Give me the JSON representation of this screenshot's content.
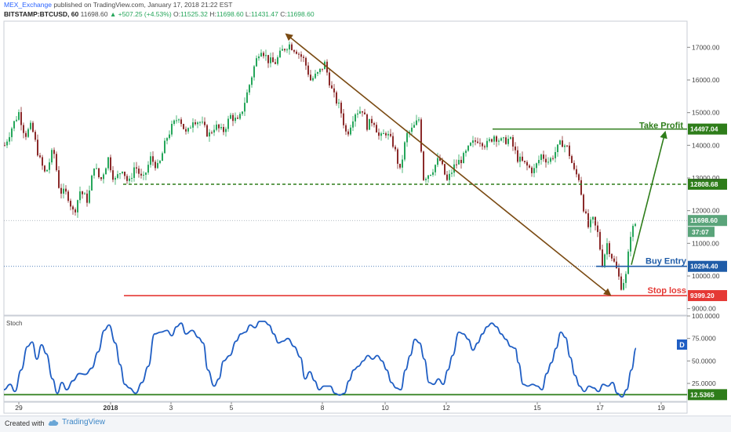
{
  "header": {
    "author": "MEX_Exchange",
    "published": "published on TradingView.com, January 17, 2018 21:22 EST",
    "symbol": "BITSTAMP:BTCUSD, 60",
    "last": "11698.60",
    "change": "▲ +507.25 (+4.53%)",
    "o_label": "O:",
    "o_val": "11525.32",
    "h_label": "H:",
    "h_val": "11698.60",
    "l_label": "L:",
    "l_val": "11431.47",
    "c_label": "C:",
    "c_val": "11698.60"
  },
  "footer": {
    "created": "Created with",
    "brand": "TradingView"
  },
  "stoch_label": "Stoch",
  "colors": {
    "up": "#26a65b",
    "down": "#8b2a2a",
    "arrow": "#7a4a12",
    "take_profit": "#2e7d1a",
    "stop": "#e53935",
    "entry": "#1f5ca8",
    "stoch": "#1f5ec4",
    "current": "#5aa47a"
  },
  "chart_data": [
    {
      "type": "candlestick",
      "x_ticks": [
        "29",
        "2018",
        "3",
        "5",
        "8",
        "10",
        "12",
        "15",
        "17",
        "19"
      ],
      "y_ticks": [
        "9000.00",
        "10000.00",
        "11000.00",
        "12000.00",
        "13000.00",
        "14000.00",
        "15000.00",
        "16000.00",
        "17000.00"
      ],
      "ylim": [
        8800,
        17800
      ],
      "price_path": [
        [
          0,
          14000
        ],
        [
          10,
          14600
        ],
        [
          18,
          15000
        ],
        [
          26,
          14300
        ],
        [
          34,
          14600
        ],
        [
          44,
          13600
        ],
        [
          52,
          13100
        ],
        [
          62,
          13900
        ],
        [
          70,
          12600
        ],
        [
          80,
          12500
        ],
        [
          88,
          11900
        ],
        [
          96,
          12600
        ],
        [
          106,
          12300
        ],
        [
          114,
          13400
        ],
        [
          122,
          12900
        ],
        [
          132,
          13600
        ],
        [
          140,
          12900
        ],
        [
          150,
          13300
        ],
        [
          158,
          12800
        ],
        [
          166,
          13400
        ],
        [
          176,
          12900
        ],
        [
          186,
          13600
        ],
        [
          196,
          13300
        ],
        [
          206,
          14200
        ],
        [
          214,
          14600
        ],
        [
          222,
          14900
        ],
        [
          232,
          14300
        ],
        [
          240,
          14800
        ],
        [
          250,
          14700
        ],
        [
          260,
          14300
        ],
        [
          268,
          14600
        ],
        [
          278,
          14400
        ],
        [
          288,
          14900
        ],
        [
          298,
          14700
        ],
        [
          308,
          15500
        ],
        [
          318,
          16400
        ],
        [
          326,
          17000
        ],
        [
          336,
          16600
        ],
        [
          344,
          16500
        ],
        [
          354,
          16900
        ],
        [
          362,
          17100
        ],
        [
          372,
          16900
        ],
        [
          382,
          16600
        ],
        [
          390,
          16000
        ],
        [
          400,
          16200
        ],
        [
          408,
          16500
        ],
        [
          418,
          15600
        ],
        [
          428,
          15100
        ],
        [
          436,
          14300
        ],
        [
          446,
          15000
        ],
        [
          456,
          15100
        ],
        [
          462,
          14600
        ],
        [
          470,
          14800
        ],
        [
          478,
          14200
        ],
        [
          486,
          14400
        ],
        [
          496,
          14000
        ],
        [
          504,
          13200
        ],
        [
          512,
          14300
        ],
        [
          520,
          14500
        ],
        [
          528,
          14800
        ],
        [
          534,
          13000
        ],
        [
          544,
          13200
        ],
        [
          554,
          13600
        ],
        [
          564,
          12900
        ],
        [
          574,
          13400
        ],
        [
          584,
          13600
        ],
        [
          594,
          14000
        ],
        [
          604,
          14200
        ],
        [
          614,
          14000
        ],
        [
          624,
          14300
        ],
        [
          634,
          14100
        ],
        [
          644,
          14200
        ],
        [
          654,
          13600
        ],
        [
          664,
          13400
        ],
        [
          674,
          13200
        ],
        [
          684,
          13700
        ],
        [
          694,
          13500
        ],
        [
          702,
          13800
        ],
        [
          710,
          14100
        ],
        [
          718,
          13900
        ],
        [
          726,
          13200
        ],
        [
          732,
          13000
        ],
        [
          738,
          12100
        ],
        [
          744,
          11500
        ],
        [
          750,
          11700
        ],
        [
          756,
          11300
        ],
        [
          762,
          10400
        ],
        [
          768,
          11000
        ],
        [
          774,
          10600
        ],
        [
          780,
          10200
        ],
        [
          786,
          9700
        ],
        [
          792,
          10000
        ],
        [
          798,
          11300
        ],
        [
          806,
          11700
        ]
      ],
      "levels": [
        {
          "label": "14497.04",
          "value": 14497.04,
          "name": "Take Profit"
        },
        {
          "label": "12808.68",
          "value": 12808.68
        },
        {
          "label": "11698.60",
          "value": 11698.6
        },
        {
          "label": "37:07"
        },
        {
          "label": "10294.40",
          "value": 10294.4,
          "name": "Buy Entry"
        },
        {
          "label": "9399.20",
          "value": 9399.2,
          "name": "Stop loss"
        }
      ],
      "annotations": [
        "Take Profit",
        "Buy Entry",
        "Stop loss"
      ]
    },
    {
      "type": "line",
      "name": "Stoch",
      "y_ticks": [
        "100.0000",
        "75.0000",
        "50.0000",
        "25.0000"
      ],
      "ylim": [
        5,
        100
      ],
      "level_label": "12.5365",
      "level_value": 12.5365,
      "d_label": "D",
      "series": [
        {
          "values": [
            [
              0,
              18
            ],
            [
              8,
              24
            ],
            [
              14,
              16
            ],
            [
              22,
              40
            ],
            [
              30,
              66
            ],
            [
              36,
              71
            ],
            [
              42,
              52
            ],
            [
              48,
              68
            ],
            [
              54,
              58
            ],
            [
              62,
              30
            ],
            [
              68,
              14
            ],
            [
              74,
              26
            ],
            [
              80,
              18
            ],
            [
              88,
              28
            ],
            [
              96,
              36
            ],
            [
              104,
              35
            ],
            [
              112,
              42
            ],
            [
              120,
              60
            ],
            [
              128,
              84
            ],
            [
              134,
              90
            ],
            [
              142,
              70
            ],
            [
              148,
              46
            ],
            [
              154,
              24
            ],
            [
              160,
              20
            ],
            [
              168,
              14
            ],
            [
              176,
              26
            ],
            [
              184,
              44
            ],
            [
              192,
              80
            ],
            [
              200,
              82
            ],
            [
              208,
              84
            ],
            [
              214,
              78
            ],
            [
              220,
              88
            ],
            [
              226,
              92
            ],
            [
              232,
              80
            ],
            [
              240,
              84
            ],
            [
              248,
              76
            ],
            [
              254,
              70
            ],
            [
              260,
              40
            ],
            [
              268,
              22
            ],
            [
              274,
              30
            ],
            [
              280,
              50
            ],
            [
              288,
              56
            ],
            [
              296,
              72
            ],
            [
              302,
              80
            ],
            [
              308,
              82
            ],
            [
              314,
              90
            ],
            [
              320,
              87
            ],
            [
              326,
              94
            ],
            [
              332,
              94
            ],
            [
              338,
              90
            ],
            [
              344,
              80
            ],
            [
              350,
              70
            ],
            [
              356,
              72
            ],
            [
              362,
              75
            ],
            [
              370,
              66
            ],
            [
              378,
              54
            ],
            [
              384,
              30
            ],
            [
              390,
              38
            ],
            [
              396,
              28
            ],
            [
              402,
              18
            ],
            [
              408,
              22
            ],
            [
              416,
              22
            ],
            [
              422,
              14
            ],
            [
              428,
              12
            ],
            [
              434,
              14
            ],
            [
              440,
              28
            ],
            [
              446,
              40
            ],
            [
              452,
              44
            ],
            [
              458,
              50
            ],
            [
              464,
              56
            ],
            [
              470,
              52
            ],
            [
              476,
              56
            ],
            [
              482,
              50
            ],
            [
              488,
              40
            ],
            [
              494,
              26
            ],
            [
              500,
              20
            ],
            [
              506,
              18
            ],
            [
              512,
              40
            ],
            [
              518,
              56
            ],
            [
              524,
              74
            ],
            [
              530,
              70
            ],
            [
              536,
              52
            ],
            [
              542,
              26
            ],
            [
              548,
              24
            ],
            [
              554,
              30
            ],
            [
              560,
              24
            ],
            [
              566,
              40
            ],
            [
              572,
              56
            ],
            [
              580,
              82
            ],
            [
              586,
              80
            ],
            [
              592,
              74
            ],
            [
              598,
              62
            ],
            [
              604,
              70
            ],
            [
              610,
              80
            ],
            [
              616,
              88
            ],
            [
              622,
              92
            ],
            [
              628,
              88
            ],
            [
              634,
              80
            ],
            [
              640,
              74
            ],
            [
              646,
              66
            ],
            [
              652,
              64
            ],
            [
              656,
              48
            ],
            [
              662,
              24
            ],
            [
              668,
              22
            ],
            [
              674,
              24
            ],
            [
              680,
              22
            ],
            [
              686,
              18
            ],
            [
              692,
              36
            ],
            [
              698,
              48
            ],
            [
              704,
              64
            ],
            [
              710,
              82
            ],
            [
              716,
              76
            ],
            [
              722,
              54
            ],
            [
              728,
              34
            ],
            [
              734,
              22
            ],
            [
              740,
              16
            ],
            [
              746,
              22
            ],
            [
              752,
              20
            ],
            [
              758,
              16
            ],
            [
              764,
              24
            ],
            [
              770,
              22
            ],
            [
              776,
              26
            ],
            [
              782,
              14
            ],
            [
              788,
              10
            ],
            [
              794,
              18
            ],
            [
              800,
              40
            ],
            [
              806,
              64
            ]
          ]
        }
      ]
    }
  ]
}
